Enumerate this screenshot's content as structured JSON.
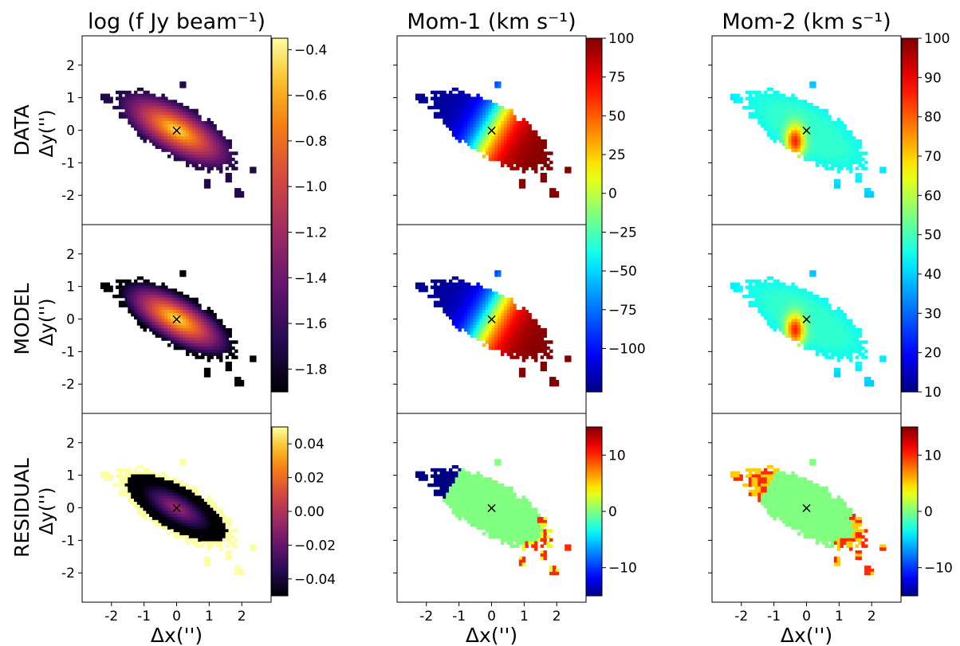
{
  "figure": {
    "row_labels": [
      "DATA",
      "MODEL",
      "RESIDUAL"
    ],
    "ylabel": "Δy('')",
    "xlabel": "Δx('')",
    "center_marker": "×"
  },
  "chart_data": [
    {
      "type": "heatmap",
      "quantity": "flux",
      "title": "log (f Jy beam⁻¹)",
      "colormap": "inferno",
      "xlim": [
        -2.9,
        2.9
      ],
      "ylim": [
        -2.9,
        2.9
      ],
      "xticks": [
        "-2",
        "-1",
        "0",
        "1",
        "2"
      ],
      "yticks": [
        "2",
        "1",
        "0",
        "-1",
        "-2"
      ],
      "center_marker": [
        0,
        0
      ],
      "panels": [
        {
          "row": "DATA",
          "colorbar": "shared-top",
          "pattern": "log flux, elongated source, peak -0.4 at center, edges ~-1.5"
        },
        {
          "row": "MODEL",
          "colorbar": "shared-top",
          "pattern": "log flux, elongated source, peak -0.4 at center, edges ~-1.9"
        },
        {
          "row": "RESIDUAL",
          "colorbar": "own",
          "pattern": "near -0.05 over body, positive +0.05 at outer edges"
        }
      ],
      "colorbars": [
        {
          "range": [
            -1.9,
            -0.35
          ],
          "ticks": [
            "−0.4",
            "−0.6",
            "−0.8",
            "−1.0",
            "−1.2",
            "−1.4",
            "−1.6",
            "−1.8"
          ],
          "tick_values": [
            -0.4,
            -0.6,
            -0.8,
            -1.0,
            -1.2,
            -1.4,
            -1.6,
            -1.8
          ]
        },
        {
          "range": [
            -0.05,
            0.05
          ],
          "ticks": [
            "0.04",
            "0.02",
            "0.00",
            "−0.02",
            "−0.04"
          ],
          "tick_values": [
            0.04,
            0.02,
            0.0,
            -0.02,
            -0.04
          ]
        }
      ]
    },
    {
      "type": "heatmap",
      "quantity": "moment-1 velocity",
      "title": "Mom-1 (km s⁻¹)",
      "colormap": "jet",
      "xlim": [
        -2.9,
        2.9
      ],
      "ylim": [
        -2.9,
        2.9
      ],
      "xticks": [
        "-2",
        "-1",
        "0",
        "1",
        "2"
      ],
      "yticks": [
        "2",
        "1",
        "0",
        "-1",
        "-2"
      ],
      "center_marker": [
        0,
        0
      ],
      "panels": [
        {
          "row": "DATA",
          "colorbar": "shared-top",
          "pattern": "rotation: -120 to east/upper-left, +100 to west/lower-right"
        },
        {
          "row": "MODEL",
          "colorbar": "shared-top",
          "pattern": "rotation: -120 to east/upper-left, +100 to west/lower-right"
        },
        {
          "row": "RESIDUAL",
          "colorbar": "own",
          "pattern": "~0 everywhere, -15 at upper-left edge, +10 at lower-right edge"
        }
      ],
      "colorbars": [
        {
          "range": [
            -128,
            100
          ],
          "ticks": [
            "100",
            "75",
            "50",
            "25",
            "0",
            "−25",
            "−50",
            "−75",
            "−100"
          ],
          "tick_values": [
            100,
            75,
            50,
            25,
            0,
            -25,
            -50,
            -75,
            -100
          ]
        },
        {
          "range": [
            -15,
            15
          ],
          "ticks": [
            "10",
            "0",
            "−10"
          ],
          "tick_values": [
            10,
            0,
            -10
          ]
        }
      ]
    },
    {
      "type": "heatmap",
      "quantity": "moment-2 dispersion",
      "title": "Mom-2 (km s⁻¹)",
      "colormap": "jet",
      "xlim": [
        -2.9,
        2.9
      ],
      "ylim": [
        -2.9,
        2.9
      ],
      "xticks": [
        "-2",
        "-1",
        "0",
        "1",
        "2"
      ],
      "yticks": [
        "2",
        "1",
        "0",
        "-1",
        "-2"
      ],
      "center_marker": [
        0,
        0
      ],
      "panels": [
        {
          "row": "DATA",
          "colorbar": "shared-top",
          "pattern": "dispersion ~45-55, peak ~85 just SW of center"
        },
        {
          "row": "MODEL",
          "colorbar": "shared-top",
          "pattern": "dispersion ~45-55, peak ~85 just SW of center"
        },
        {
          "row": "RESIDUAL",
          "colorbar": "own",
          "pattern": "~0 everywhere, +10 at upper-left edge and lower-right edge"
        }
      ],
      "colorbars": [
        {
          "range": [
            10,
            100
          ],
          "ticks": [
            "100",
            "90",
            "80",
            "70",
            "60",
            "50",
            "40",
            "30",
            "20",
            "10"
          ],
          "tick_values": [
            100,
            90,
            80,
            70,
            60,
            50,
            40,
            30,
            20,
            10
          ]
        },
        {
          "range": [
            -15,
            15
          ],
          "ticks": [
            "10",
            "0",
            "−10"
          ],
          "tick_values": [
            10,
            0,
            -10
          ]
        }
      ]
    }
  ]
}
